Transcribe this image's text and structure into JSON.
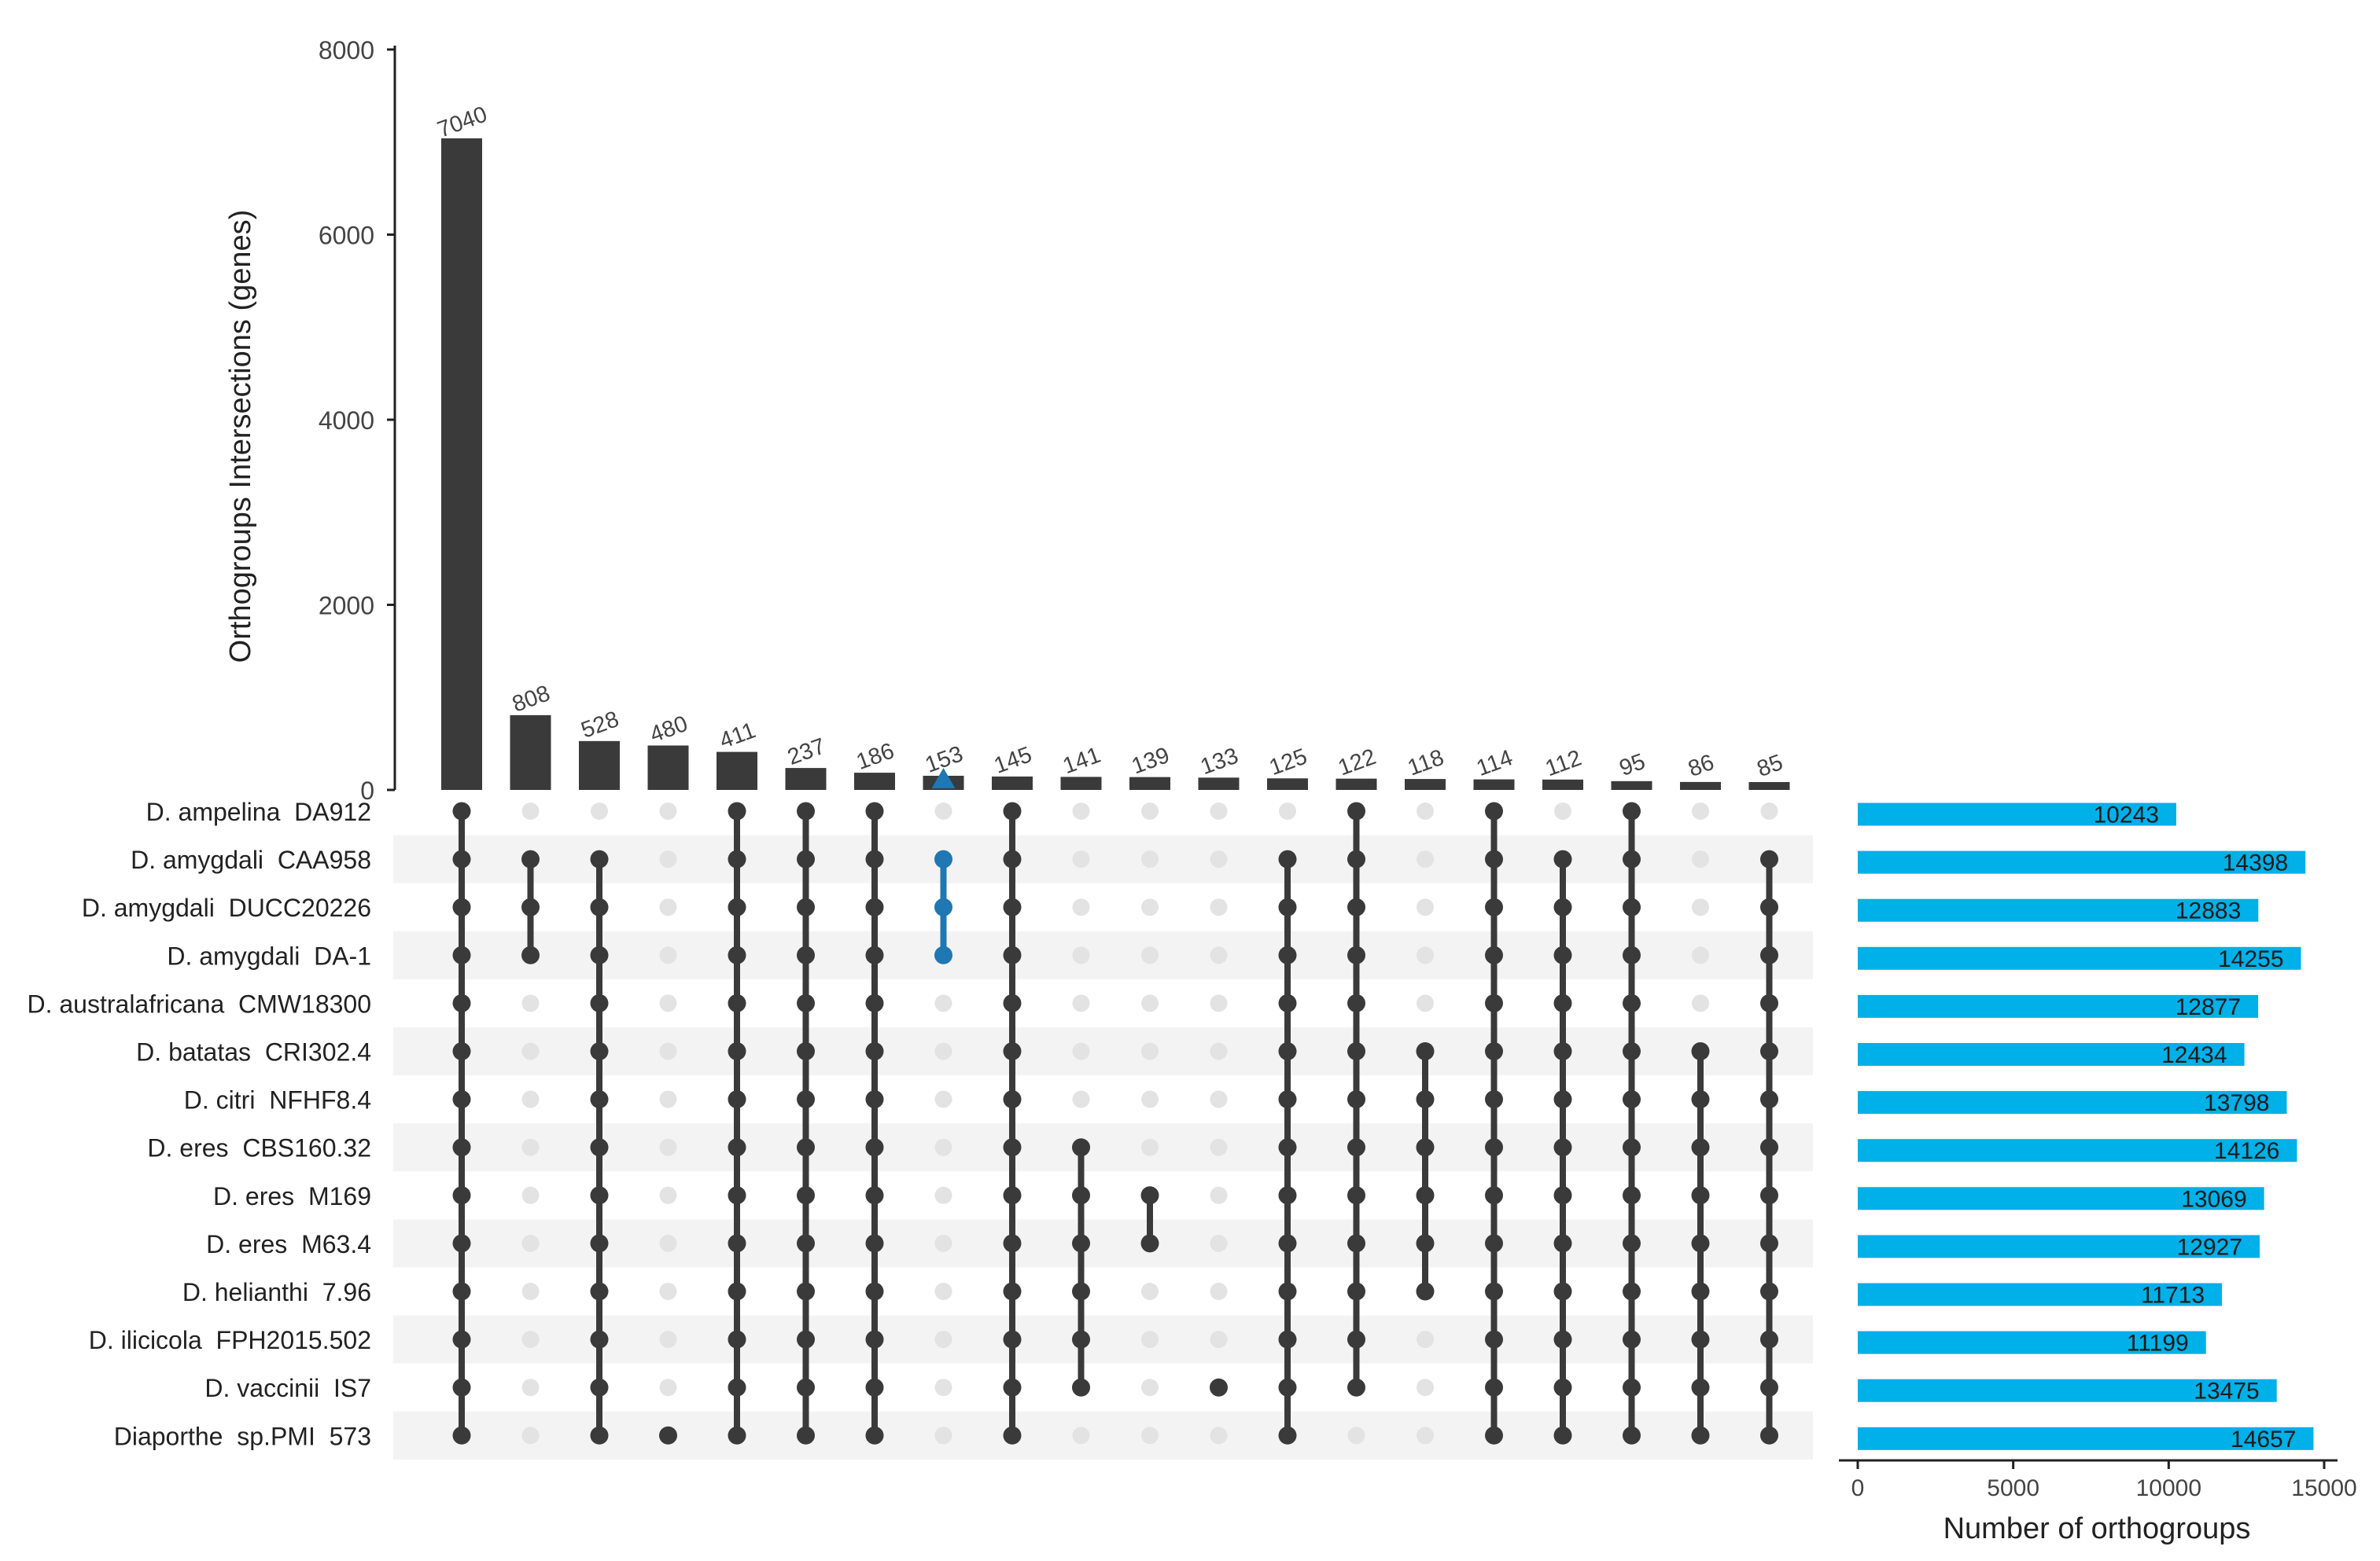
{
  "chart_data": {
    "type": "upset",
    "ylabel": "Orthogroups Intersections (genes)",
    "xlabel_sets": "Number of orthogroups",
    "y_ticks": [
      0,
      2000,
      4000,
      6000,
      8000
    ],
    "ylim": [
      0,
      8000
    ],
    "set_ticks": [
      0,
      5000,
      10000,
      15000
    ],
    "set_xlim": [
      0,
      15000
    ],
    "colors": {
      "bar": "#3a3a3a",
      "dot_active": "#3a3a3a",
      "dot_inactive": "#e3e3e3",
      "highlight": "#1f77b4",
      "set_bar": "#00b0e8",
      "stripe": "#f3f3f3"
    },
    "highlight_index": 7,
    "sets": [
      {
        "name": "D. ampelina  DA912",
        "size": 10243
      },
      {
        "name": "D. amygdali  CAA958",
        "size": 14398
      },
      {
        "name": "D. amygdali  DUCC20226",
        "size": 12883
      },
      {
        "name": "D. amygdali  DA-1",
        "size": 14255
      },
      {
        "name": "D. australafricana  CMW18300",
        "size": 12877
      },
      {
        "name": "D. batatas  CRI302.4",
        "size": 12434
      },
      {
        "name": "D. citri  NFHF8.4",
        "size": 13798
      },
      {
        "name": "D. eres  CBS160.32",
        "size": 14126
      },
      {
        "name": "D. eres  M169",
        "size": 13069
      },
      {
        "name": "D. eres  M63.4",
        "size": 12927
      },
      {
        "name": "D. helianthi  7.96",
        "size": 11713
      },
      {
        "name": "D. ilicicola  FPH2015.502",
        "size": 11199
      },
      {
        "name": "D. vaccinii  IS7",
        "size": 13475
      },
      {
        "name": "Diaporthe  sp.PMI  573",
        "size": 14657
      }
    ],
    "intersections": [
      {
        "value": 7040,
        "sets": [
          0,
          1,
          2,
          3,
          4,
          5,
          6,
          7,
          8,
          9,
          10,
          11,
          12,
          13
        ]
      },
      {
        "value": 808,
        "sets": [
          1,
          2,
          3
        ]
      },
      {
        "value": 528,
        "sets": [
          1,
          2,
          3,
          4,
          5,
          6,
          7,
          8,
          9,
          10,
          11,
          12,
          13
        ]
      },
      {
        "value": 480,
        "sets": [
          13
        ]
      },
      {
        "value": 411,
        "sets": [
          0,
          1,
          2,
          3,
          4,
          5,
          6,
          7,
          8,
          9,
          10,
          11,
          12,
          13
        ]
      },
      {
        "value": 237,
        "sets": [
          0,
          1,
          2,
          3,
          4,
          5,
          6,
          7,
          8,
          9,
          10,
          11,
          12,
          13
        ]
      },
      {
        "value": 186,
        "sets": [
          0,
          1,
          2,
          3,
          4,
          5,
          6,
          7,
          8,
          9,
          10,
          11,
          12,
          13
        ]
      },
      {
        "value": 153,
        "sets": [
          1,
          2,
          3
        ]
      },
      {
        "value": 145,
        "sets": [
          0,
          1,
          2,
          3,
          4,
          5,
          6,
          7,
          8,
          9,
          10,
          11,
          12,
          13
        ]
      },
      {
        "value": 141,
        "sets": [
          7,
          8,
          9,
          10,
          11,
          12
        ]
      },
      {
        "value": 139,
        "sets": [
          8,
          9
        ]
      },
      {
        "value": 133,
        "sets": [
          12
        ]
      },
      {
        "value": 125,
        "sets": [
          1,
          2,
          3,
          4,
          5,
          6,
          7,
          8,
          9,
          10,
          11,
          12,
          13
        ]
      },
      {
        "value": 122,
        "sets": [
          0,
          1,
          2,
          3,
          4,
          5,
          6,
          7,
          8,
          9,
          10,
          11,
          12
        ]
      },
      {
        "value": 118,
        "sets": [
          5,
          6,
          7,
          8,
          9,
          10
        ]
      },
      {
        "value": 114,
        "sets": [
          0,
          1,
          2,
          3,
          4,
          5,
          6,
          7,
          8,
          9,
          10,
          11,
          12,
          13
        ]
      },
      {
        "value": 112,
        "sets": [
          1,
          2,
          3,
          4,
          5,
          6,
          7,
          8,
          9,
          10,
          11,
          12,
          13
        ]
      },
      {
        "value": 95,
        "sets": [
          0,
          1,
          2,
          3,
          4,
          5,
          6,
          7,
          8,
          9,
          10,
          11,
          12,
          13
        ]
      },
      {
        "value": 86,
        "sets": [
          5,
          6,
          7,
          8,
          9,
          10,
          11,
          12,
          13
        ]
      },
      {
        "value": 85,
        "sets": [
          1,
          2,
          3,
          4,
          5,
          6,
          7,
          8,
          9,
          10,
          11,
          12,
          13
        ]
      }
    ]
  }
}
